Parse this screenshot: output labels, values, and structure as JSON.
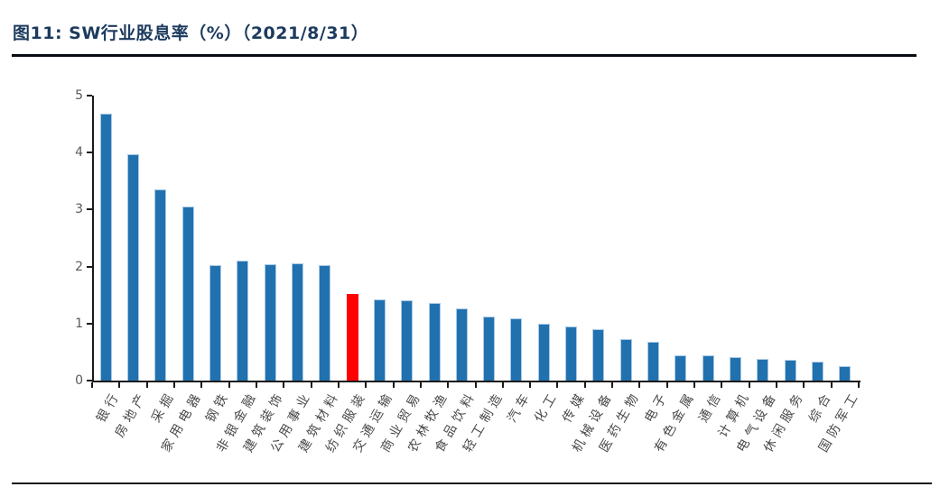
{
  "figure": {
    "title": "图11: SW行业股息率（%）（2021/8/31）"
  },
  "chart_data": {
    "type": "bar",
    "title": "SW行业股息率（%）（2021/8/31）",
    "categories": [
      "银行",
      "房地产",
      "采掘",
      "家用电器",
      "钢铁",
      "非银金融",
      "建筑装饰",
      "公用事业",
      "建筑材料",
      "纺织服装",
      "交通运输",
      "商业贸易",
      "农林牧渔",
      "食品饮料",
      "轻工制造",
      "汽车",
      "化工",
      "传媒",
      "机械设备",
      "医药生物",
      "电子",
      "有色金属",
      "通信",
      "计算机",
      "电气设备",
      "休闲服务",
      "综合",
      "国防军工"
    ],
    "values": [
      4.68,
      3.97,
      3.36,
      3.06,
      2.03,
      2.11,
      2.04,
      2.06,
      2.03,
      1.52,
      1.43,
      1.41,
      1.36,
      1.26,
      1.13,
      1.09,
      0.99,
      0.95,
      0.9,
      0.73,
      0.68,
      0.45,
      0.44,
      0.41,
      0.38,
      0.36,
      0.33,
      0.26
    ],
    "highlight_index": 9,
    "highlight_category": "纺织服装",
    "bar_color": "#2171af",
    "bar_edge_color": "#a9c9e5",
    "highlight_color": "#ff0000",
    "ylim": [
      0,
      5
    ],
    "yticks": [
      0,
      1,
      2,
      3,
      4,
      5
    ],
    "xlabel": "",
    "ylabel": "",
    "grid": false,
    "legend": false,
    "tick_label_color": "#595959",
    "category_label_color": "#4a4a4a",
    "axis_color": "#1a1a1a",
    "title_color": "#1c3a5e"
  }
}
